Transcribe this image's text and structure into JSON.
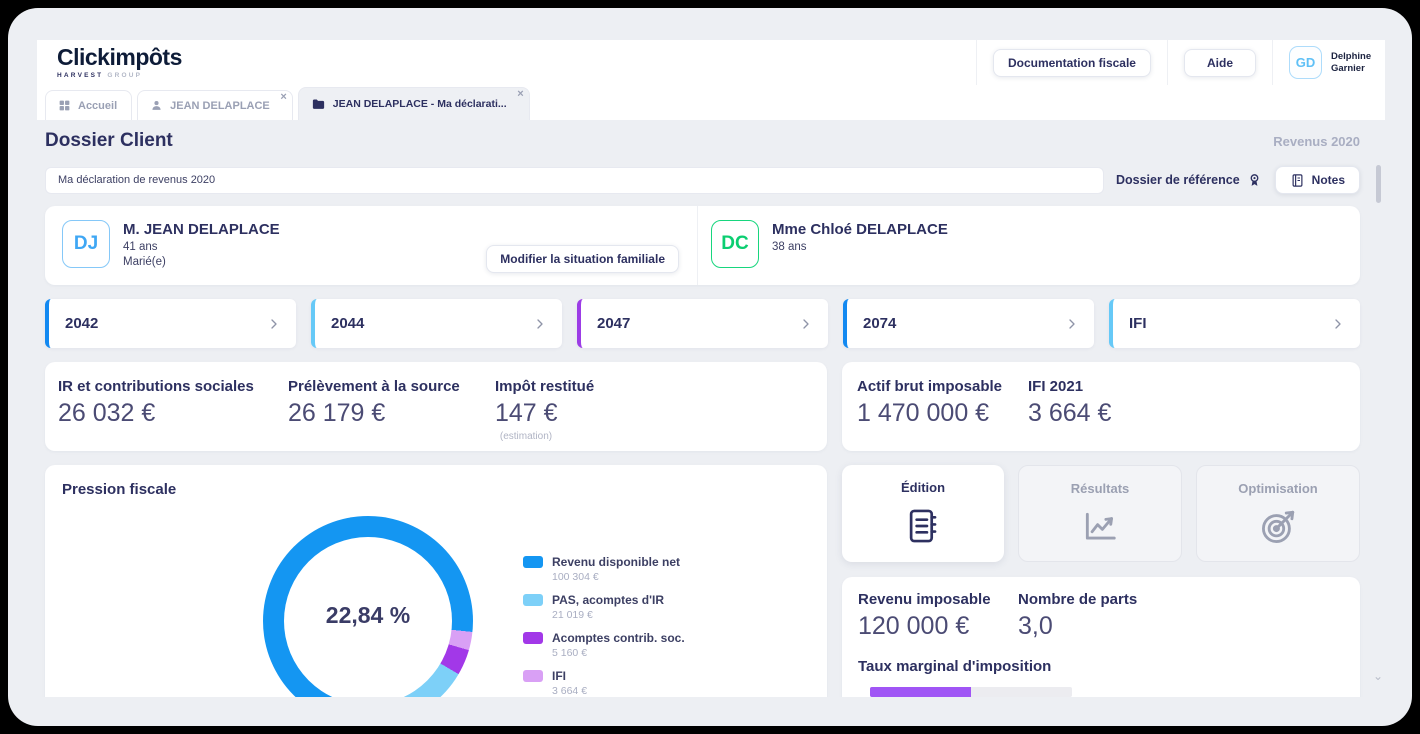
{
  "header": {
    "logo_title": "Clickimpôts",
    "logo_subtitle_brand": "HARVEST",
    "logo_subtitle_rest": "GROUP",
    "doc_button": "Documentation fiscale",
    "help_button": "Aide",
    "user_initials": "GD",
    "user_name": "Delphine Garnier"
  },
  "tabs": [
    {
      "label": "Accueil",
      "icon": "grid-icon",
      "active": false
    },
    {
      "label": "JEAN DELAPLACE",
      "icon": "person-icon",
      "active": false
    },
    {
      "label": "JEAN DELAPLACE - Ma déclarati...",
      "icon": "folder-icon",
      "active": true
    }
  ],
  "page": {
    "title": "Dossier Client",
    "year": "Revenus 2020",
    "declaration_name": "Ma déclaration de revenus 2020",
    "reference_label": "Dossier de référence",
    "notes_label": "Notes"
  },
  "clients": [
    {
      "initials": "DJ",
      "accent": "#3fa7f4",
      "border": "#85c8f8",
      "name": "M. JEAN DELAPLACE",
      "age": "41 ans",
      "marital": "Marié(e)",
      "action_label": "Modifier la situation familiale"
    },
    {
      "initials": "DC",
      "accent": "#0bce71",
      "border": "#17d67e",
      "name": "Mme Chloé DELAPLACE",
      "age": "38 ans"
    }
  ],
  "forms": [
    {
      "label": "2042",
      "color": "#1389f1"
    },
    {
      "label": "2044",
      "color": "#66c9f7"
    },
    {
      "label": "2047",
      "color": "#9c3ce6"
    },
    {
      "label": "2074",
      "color": "#1389f1"
    },
    {
      "label": "IFI",
      "color": "#66c9f7"
    }
  ],
  "tax_stats": [
    {
      "label": "IR et contributions sociales",
      "value": "26 032 €"
    },
    {
      "label": "Prélèvement à la source",
      "value": "26 179 €"
    },
    {
      "label": "Impôt restitué",
      "value": "147 €",
      "note": "(estimation)"
    }
  ],
  "wealth_stats": [
    {
      "label": "Actif brut imposable",
      "value": "1 470 000 €"
    },
    {
      "label": "IFI 2021",
      "value": "3 664 €"
    }
  ],
  "chart_data": {
    "type": "pie",
    "title": "Pression fiscale",
    "center_label": "22,84 %",
    "center_value_percent": 22.84,
    "legend_position": "right",
    "segments": [
      {
        "label": "Revenu disponible net",
        "value": 100304,
        "value_text": "100 304 €",
        "color": "#1496f2"
      },
      {
        "label": "PAS, acomptes d'IR",
        "value": 21019,
        "value_text": "21 019 €",
        "color": "#7dd0f8"
      },
      {
        "label": "Acomptes contrib. soc.",
        "value": 5160,
        "value_text": "5 160 €",
        "color": "#a238e8"
      },
      {
        "label": "IFI",
        "value": 3664,
        "value_text": "3 664 €",
        "color": "#d9a0f5"
      }
    ]
  },
  "actions": [
    {
      "label": "Édition",
      "icon": "journal-icon",
      "active": true
    },
    {
      "label": "Résultats",
      "icon": "line-chart-icon",
      "active": false
    },
    {
      "label": "Optimisation",
      "icon": "target-icon",
      "active": false
    }
  ],
  "summary": {
    "income_label": "Revenu imposable",
    "income_value": "120 000 €",
    "parts_label": "Nombre de parts",
    "parts_value": "3,0",
    "tmi_label": "Taux marginal d'imposition",
    "tmi_fill_percent": 50
  }
}
